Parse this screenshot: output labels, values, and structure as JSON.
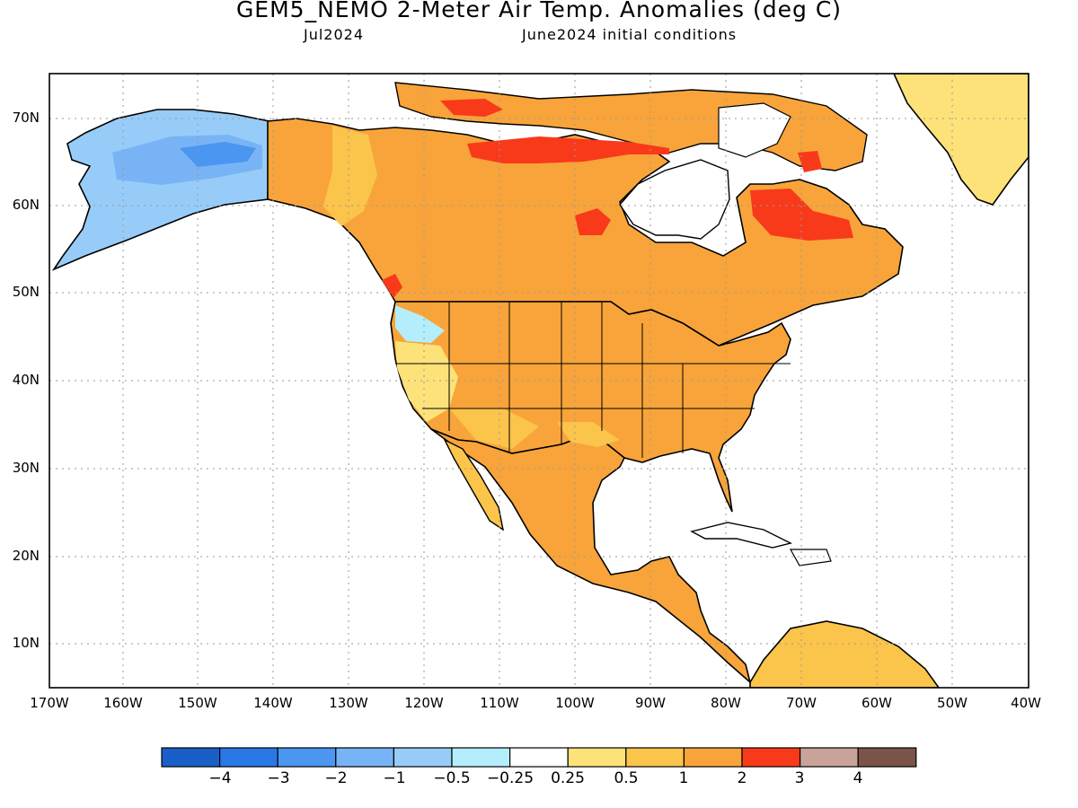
{
  "header": {
    "title": "GEM5_NEMO 2-Meter Air Temp. Anomalies (deg C)",
    "valid_month": "Jul2024",
    "init": "June2024 initial conditions"
  },
  "axes": {
    "lat_labels": [
      "70N",
      "60N",
      "50N",
      "40N",
      "30N",
      "20N",
      "10N"
    ],
    "lon_labels": [
      "170W",
      "160W",
      "150W",
      "140W",
      "130W",
      "120W",
      "110W",
      "100W",
      "90W",
      "80W",
      "70W",
      "60W",
      "50W",
      "40W"
    ]
  },
  "colorbar": {
    "colors": [
      "#1a5fc8",
      "#2a78e8",
      "#4a96f0",
      "#78b4f5",
      "#98ccf8",
      "#b4eefc",
      "#ffffff",
      "#fde27a",
      "#fbc44a",
      "#f8a43a",
      "#f83a1a",
      "#c9a39a",
      "#7a5448"
    ],
    "labels": [
      "−4",
      "−3",
      "−2",
      "−1",
      "−0.5",
      "−0.25",
      "0.25",
      "0.5",
      "1",
      "2",
      "3",
      "4"
    ]
  },
  "colors": {
    "warm1": "#fde27a",
    "warm2": "#fbc44a",
    "warm3": "#f8a43a",
    "hot": "#f83a1a",
    "cool1": "#b4eefc",
    "cool2": "#98ccf8",
    "cool3": "#78b4f5",
    "cool4": "#4a96f0"
  }
}
